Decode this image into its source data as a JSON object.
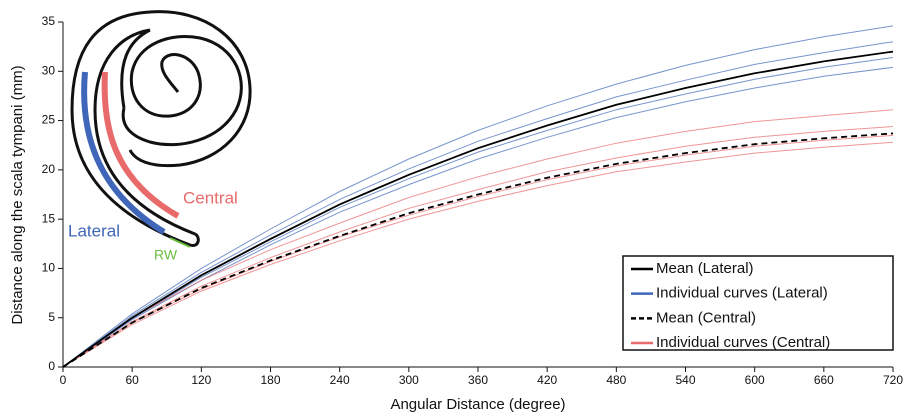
{
  "chart_data": {
    "type": "line",
    "xlabel": "Angular Distance (degree)",
    "ylabel": "Distance along the scala tympani (mm)",
    "x": [
      0,
      60,
      120,
      180,
      240,
      300,
      360,
      420,
      480,
      540,
      600,
      660,
      720
    ],
    "xlim": [
      0,
      720
    ],
    "xticks": [
      0,
      60,
      120,
      180,
      240,
      300,
      360,
      420,
      480,
      540,
      600,
      660,
      720
    ],
    "ylim": [
      0,
      35
    ],
    "yticks": [
      0,
      5,
      10,
      15,
      20,
      25,
      30,
      35
    ],
    "legend": "lower right",
    "annotations": [
      "Lateral",
      "Central",
      "RW"
    ],
    "series": [
      {
        "name": "Mean (Lateral)",
        "color": "#000000",
        "dashed": false,
        "values": [
          0,
          5,
          9.3,
          13,
          16.5,
          19.5,
          22.2,
          24.5,
          26.6,
          28.3,
          29.8,
          31,
          32
        ]
      },
      {
        "name": "Individual curves (Lateral)",
        "color": "#3f66b8",
        "dashed": false,
        "curves": [
          [
            0,
            4.8,
            8.8,
            12.4,
            15.7,
            18.5,
            21.1,
            23.3,
            25.3,
            26.9,
            28.3,
            29.5,
            30.4
          ],
          [
            0,
            4.9,
            9.1,
            12.7,
            16.2,
            19.1,
            21.8,
            24.0,
            26.1,
            27.7,
            29.2,
            30.4,
            31.4
          ],
          [
            0,
            5.2,
            9.6,
            13.4,
            17.0,
            20.1,
            22.9,
            25.2,
            27.4,
            29.1,
            30.7,
            31.9,
            33.0
          ],
          [
            0,
            5.4,
            10.0,
            14.0,
            17.8,
            21.1,
            24.0,
            26.5,
            28.7,
            30.6,
            32.2,
            33.5,
            34.6
          ]
        ]
      },
      {
        "name": "Mean (Central)",
        "color": "#000000",
        "dashed": true,
        "values": [
          0,
          4.5,
          8,
          10.8,
          13.3,
          15.6,
          17.5,
          19.2,
          20.6,
          21.7,
          22.6,
          23.2,
          23.7
        ]
      },
      {
        "name": "Individual curves (Central)",
        "color": "#e86a6a",
        "dashed": false,
        "curves": [
          [
            0,
            4.3,
            7.7,
            10.4,
            12.8,
            15.0,
            16.8,
            18.4,
            19.8,
            20.8,
            21.7,
            22.3,
            22.8
          ],
          [
            0,
            4.5,
            7.9,
            10.7,
            13.2,
            15.4,
            17.3,
            19.0,
            20.4,
            21.5,
            22.4,
            23.0,
            23.5
          ],
          [
            0,
            4.6,
            8.2,
            11.1,
            13.7,
            16.1,
            18.0,
            19.8,
            21.2,
            22.4,
            23.3,
            23.9,
            24.4
          ],
          [
            0,
            5.0,
            8.8,
            11.9,
            14.6,
            17.2,
            19.3,
            21.1,
            22.7,
            23.9,
            24.9,
            25.5,
            26.1
          ]
        ]
      }
    ]
  }
}
